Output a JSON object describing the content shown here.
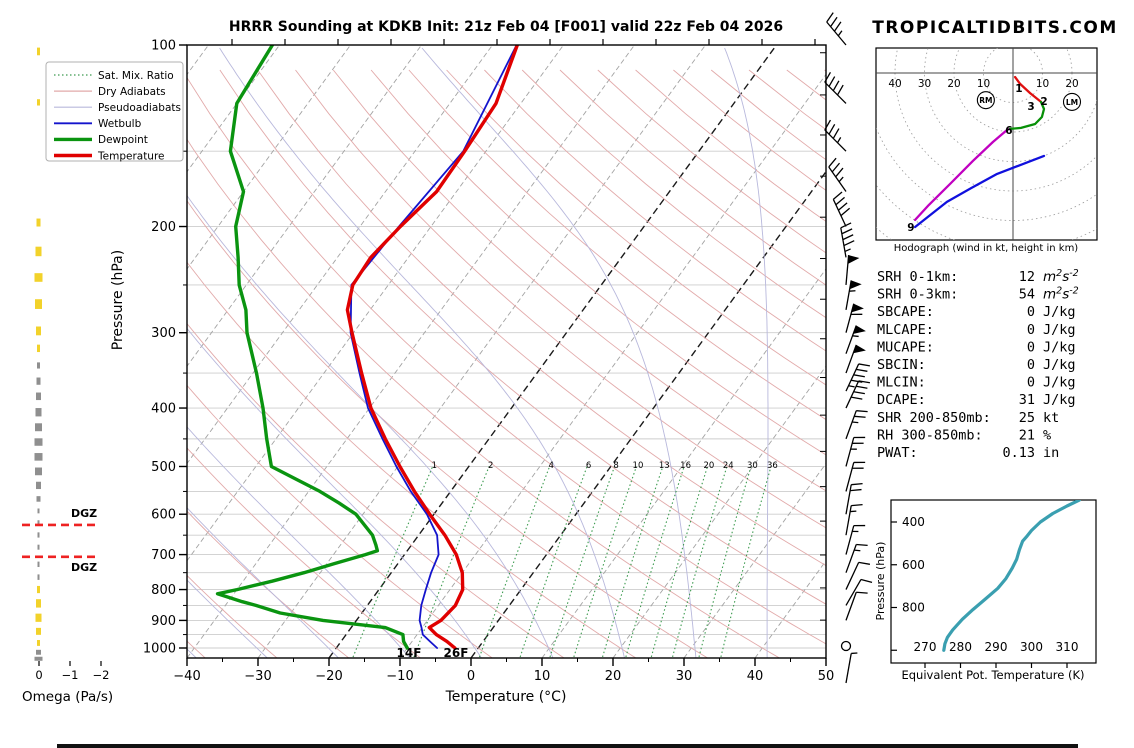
{
  "header": {
    "title": "HRRR Sounding at KDKB Init: 21z Feb 04 [F001] valid 22z Feb 04 2026",
    "watermark": "TROPICALTIDBITS.COM"
  },
  "skewt": {
    "xlabel": "Temperature (°C)",
    "ylabel": "Pressure (hPa)",
    "pressure_ticks": [
      100,
      200,
      300,
      400,
      500,
      600,
      700,
      800,
      900,
      1000
    ],
    "temp_tick_labels": [
      "−40",
      "−30",
      "−20",
      "−10",
      "0",
      "10",
      "20",
      "30",
      "40",
      "50"
    ],
    "temp_ticks": [
      -40,
      -30,
      -20,
      -10,
      0,
      10,
      20,
      30,
      40,
      50
    ],
    "surface_temp_label": "26F",
    "surface_dewpoint_label": "14F",
    "mixing_ratio_values": [
      1,
      2,
      4,
      6,
      8,
      10,
      13,
      16,
      20,
      24,
      30,
      36
    ],
    "legend": [
      {
        "label": "Sat. Mix. Ratio",
        "color": "#3d9b50",
        "width": 1.2,
        "dash": "1.5 2.5"
      },
      {
        "label": "Dry Adiabats",
        "color": "#e2aaaa",
        "width": 1.2,
        "dash": ""
      },
      {
        "label": "Pseudoadiabats",
        "color": "#b8b8dc",
        "width": 1.2,
        "dash": ""
      },
      {
        "label": "Wetbulb",
        "color": "#1414cc",
        "width": 1.8,
        "dash": ""
      },
      {
        "label": "Dewpoint",
        "color": "#0a9410",
        "width": 3.4,
        "dash": ""
      },
      {
        "label": "Temperature",
        "color": "#e00000",
        "width": 3.4,
        "dash": ""
      }
    ]
  },
  "omega_panel": {
    "xlabel": "Omega (Pa/s)",
    "tick_labels": [
      "0",
      "−1",
      "−2"
    ],
    "dgz_label": "DGZ",
    "dgz_pressures": [
      625,
      706
    ]
  },
  "hodograph": {
    "caption": "Hodograph (wind in kt, height in km)",
    "ring_labels_left": [
      "40",
      "30",
      "20",
      "10"
    ],
    "ring_labels_right": [
      "10",
      "20"
    ],
    "storm_markers": [
      {
        "label": "RM",
        "u": -9.2,
        "v": -9.2
      },
      {
        "label": "LM",
        "u": 20.0,
        "v": -9.8
      }
    ],
    "height_marks": [
      {
        "km": "1",
        "u": 2.0,
        "v": -6.4
      },
      {
        "km": "2",
        "u": 10.5,
        "v": -10.8
      },
      {
        "km": "3",
        "u": 6.1,
        "v": -12.5
      },
      {
        "km": "6",
        "u": -1.4,
        "v": -20.7
      },
      {
        "km": "9",
        "u": -34.6,
        "v": -53.6
      }
    ]
  },
  "stats": {
    "rows": [
      {
        "label": "SRH 0-1km:",
        "value": "12",
        "unit": "m²s⁻²",
        "color": "#000000"
      },
      {
        "label": "SRH 0-3km:",
        "value": "54",
        "unit": "m²s⁻²",
        "color": "#000000"
      },
      {
        "label": "SBCAPE:",
        "value": "0",
        "unit": "J/kg",
        "color": "#000000"
      },
      {
        "label": "MLCAPE:",
        "value": "0",
        "unit": "J/kg",
        "color": "#000000"
      },
      {
        "label": "MUCAPE:",
        "value": "0",
        "unit": "J/kg",
        "color": "#000000"
      },
      {
        "label": "SBCIN:",
        "value": "0",
        "unit": "J/kg",
        "color": "#000000"
      },
      {
        "label": "MLCIN:",
        "value": "0",
        "unit": "J/kg",
        "color": "#000000"
      },
      {
        "label": "DCAPE:",
        "value": "31",
        "unit": "J/kg",
        "color": "#2a2ad8"
      },
      {
        "label": "SHR 200-850mb:",
        "value": "25",
        "unit": "kt",
        "color": "#dd5b35"
      },
      {
        "label": "RH 300-850mb:",
        "value": "21",
        "unit": "%",
        "color": "#a0761b"
      },
      {
        "label": "PWAT:",
        "value": "0.13",
        "unit": "in",
        "color": "#000000"
      }
    ]
  },
  "theta_e_panel": {
    "xlabel": "Equivalent Pot. Temperature (K)",
    "ylabel": "Pressure (hPa)",
    "x_ticks": [
      270,
      280,
      290,
      300,
      310
    ],
    "y_ticks": [
      400,
      600,
      800
    ]
  },
  "chart_data": {
    "sounding": {
      "type": "line",
      "title": "HRRR Sounding at KDKB Init: 21z Feb 04 [F001] valid 22z Feb 04 2026",
      "xlabel": "Temperature (°C)",
      "ylabel": "Pressure (hPa)",
      "x_range": [
        -40,
        50
      ],
      "pressure_range": [
        100,
        1050
      ],
      "surface_temp": "26F",
      "surface_dewpoint": "14F",
      "series": [
        {
          "name": "Temperature",
          "color": "#e00000",
          "points": [
            [
              100,
              -56.5
            ],
            [
              125,
              -53.5
            ],
            [
              150,
              -53.0
            ],
            [
              175,
              -52.8
            ],
            [
              200,
              -54.3
            ],
            [
              225,
              -55.3
            ],
            [
              250,
              -55.0
            ],
            [
              275,
              -53.2
            ],
            [
              300,
              -50.2
            ],
            [
              350,
              -44.7
            ],
            [
              400,
              -39.8
            ],
            [
              450,
              -34.6
            ],
            [
              500,
              -29.7
            ],
            [
              550,
              -25.1
            ],
            [
              600,
              -20.6
            ],
            [
              650,
              -16.3
            ],
            [
              700,
              -12.7
            ],
            [
              750,
              -10.0
            ],
            [
              800,
              -8.2
            ],
            [
              850,
              -7.6
            ],
            [
              900,
              -8.1
            ],
            [
              925,
              -9.0
            ],
            [
              950,
              -7.3
            ],
            [
              975,
              -5.1
            ],
            [
              1000,
              -3.3
            ]
          ]
        },
        {
          "name": "Dewpoint",
          "color": "#0a9410",
          "points": [
            [
              100,
              -91
            ],
            [
              125,
              -90
            ],
            [
              150,
              -86
            ],
            [
              175,
              -80
            ],
            [
              200,
              -77.5
            ],
            [
              225,
              -74
            ],
            [
              250,
              -71
            ],
            [
              275,
              -67.5
            ],
            [
              300,
              -65
            ],
            [
              350,
              -59.5
            ],
            [
              400,
              -55
            ],
            [
              450,
              -51.3
            ],
            [
              500,
              -47.8
            ],
            [
              525,
              -43
            ],
            [
              550,
              -38.4
            ],
            [
              575,
              -34.5
            ],
            [
              600,
              -31
            ],
            [
              650,
              -26.5
            ],
            [
              675,
              -25
            ],
            [
              690,
              -24.2
            ],
            [
              700,
              -25.5
            ],
            [
              725,
              -29
            ],
            [
              750,
              -32.3
            ],
            [
              775,
              -35.9
            ],
            [
              800,
              -40
            ],
            [
              813,
              -42.3
            ],
            [
              838,
              -38
            ],
            [
              850,
              -35.7
            ],
            [
              875,
              -31.5
            ],
            [
              900,
              -24.7
            ],
            [
              925,
              -15.2
            ],
            [
              950,
              -12
            ],
            [
              975,
              -11.2
            ],
            [
              1000,
              -10
            ]
          ]
        },
        {
          "name": "Wetbulb",
          "color": "#1414cc",
          "points": [
            [
              100,
              -56.6
            ],
            [
              150,
              -53.2
            ],
            [
              200,
              -54.5
            ],
            [
              250,
              -55.2
            ],
            [
              300,
              -50.4
            ],
            [
              350,
              -45
            ],
            [
              400,
              -40.2
            ],
            [
              450,
              -35
            ],
            [
              500,
              -30.2
            ],
            [
              550,
              -25.6
            ],
            [
              600,
              -21
            ],
            [
              650,
              -17.4
            ],
            [
              700,
              -15.2
            ],
            [
              750,
              -14.4
            ],
            [
              800,
              -13.4
            ],
            [
              850,
              -12.4
            ],
            [
              900,
              -11.1
            ],
            [
              925,
              -10.1
            ],
            [
              950,
              -9.2
            ],
            [
              975,
              -7.5
            ],
            [
              1000,
              -5.8
            ]
          ]
        }
      ]
    },
    "wind_barbs": {
      "type": "barbs",
      "units": "kt",
      "levels_p_dir_spd": [
        [
          100,
          320,
          35
        ],
        [
          125,
          315,
          40
        ],
        [
          150,
          315,
          35
        ],
        [
          175,
          325,
          35
        ],
        [
          200,
          335,
          40
        ],
        [
          225,
          350,
          45
        ],
        [
          250,
          5,
          50
        ],
        [
          275,
          10,
          55
        ],
        [
          300,
          15,
          60
        ],
        [
          325,
          20,
          55
        ],
        [
          350,
          20,
          50
        ],
        [
          375,
          25,
          45
        ],
        [
          400,
          25,
          40
        ],
        [
          450,
          20,
          25
        ],
        [
          500,
          15,
          25
        ],
        [
          550,
          15,
          20
        ],
        [
          600,
          10,
          20
        ],
        [
          650,
          10,
          15
        ],
        [
          700,
          15,
          15
        ],
        [
          750,
          20,
          15
        ],
        [
          800,
          25,
          10
        ],
        [
          850,
          30,
          10
        ],
        [
          900,
          20,
          10
        ],
        [
          950,
          0,
          0
        ],
        [
          1000,
          10,
          5
        ]
      ]
    },
    "hodograph": {
      "type": "line",
      "units": "kt",
      "segments": [
        {
          "name": "0-2 km",
          "color": "#e01010",
          "points": [
            [
              0.7,
              -1.4
            ],
            [
              2.4,
              -3.7
            ],
            [
              5.8,
              -6.8
            ],
            [
              9.5,
              -9.8
            ]
          ]
        },
        {
          "name": "2-6 km",
          "color": "#089008",
          "points": [
            [
              9.5,
              -9.8
            ],
            [
              10.5,
              -12.2
            ],
            [
              9.8,
              -14.9
            ],
            [
              7.5,
              -17.3
            ],
            [
              2.7,
              -18.6
            ],
            [
              -1.7,
              -19.0
            ]
          ]
        },
        {
          "name": "6-9 km",
          "color": "#c000c0",
          "points": [
            [
              -1.7,
              -19.0
            ],
            [
              -6.8,
              -23.4
            ],
            [
              -13.6,
              -29.8
            ],
            [
              -21.0,
              -37.3
            ],
            [
              -28.5,
              -44.7
            ],
            [
              -33.2,
              -49.8
            ]
          ]
        },
        {
          "name": "upper",
          "color": "#1010dd",
          "points": [
            [
              10.5,
              -28.1
            ],
            [
              1.7,
              -31.5
            ],
            [
              -5.4,
              -34.2
            ],
            [
              -14.2,
              -39.0
            ],
            [
              -22.4,
              -43.7
            ],
            [
              -33.2,
              -52.2
            ]
          ]
        }
      ]
    },
    "omega_profile": {
      "type": "line",
      "xlabel": "Omega (Pa/s)",
      "x_ticks": [
        0,
        -1,
        -2
      ],
      "dgz_pressures": [
        625,
        706
      ],
      "segments_p1_p2_w_color": [
        [
          101,
          104,
          3,
          "yellow"
        ],
        [
          123,
          126,
          3,
          "yellow"
        ],
        [
          194,
          200,
          4,
          "yellow"
        ],
        [
          216,
          224,
          6,
          "yellow"
        ],
        [
          239,
          247,
          8,
          "yellow"
        ],
        [
          264,
          274,
          7,
          "yellow"
        ],
        [
          293,
          303,
          5,
          "yellow"
        ],
        [
          314,
          323,
          3,
          "yellow"
        ],
        [
          336,
          344,
          3,
          "gray"
        ],
        [
          356,
          366,
          4,
          "gray"
        ],
        [
          377,
          388,
          5,
          "gray"
        ],
        [
          400,
          413,
          6,
          "gray"
        ],
        [
          424,
          437,
          7,
          "gray"
        ],
        [
          449,
          462,
          8,
          "gray"
        ],
        [
          475,
          489,
          8,
          "gray"
        ],
        [
          502,
          517,
          7,
          "gray"
        ],
        [
          530,
          545,
          5,
          "gray"
        ],
        [
          560,
          572,
          4,
          "gray"
        ],
        [
          587,
          598,
          2,
          "gray"
        ],
        [
          614,
          626,
          2,
          "gray"
        ],
        [
          643,
          656,
          2,
          "gray"
        ],
        [
          674,
          687,
          2,
          "gray"
        ],
        [
          719,
          734,
          2,
          "gray"
        ],
        [
          755,
          771,
          2,
          "gray"
        ],
        [
          789,
          811,
          3,
          "yellow"
        ],
        [
          830,
          857,
          5,
          "yellow"
        ],
        [
          877,
          905,
          6,
          "yellow"
        ],
        [
          926,
          951,
          5,
          "yellow"
        ],
        [
          970,
          992,
          3,
          "yellow"
        ],
        [
          1007,
          1026,
          5,
          "gray"
        ],
        [
          1034,
          1050,
          8,
          "gray"
        ]
      ]
    },
    "theta_e_profile": {
      "type": "line",
      "xlabel": "Equivalent Pot. Temperature (K)",
      "ylabel": "Pressure (hPa)",
      "color": "#3a9fb0",
      "points": [
        [
          313.5,
          297
        ],
        [
          310,
          325
        ],
        [
          306,
          360
        ],
        [
          302.5,
          400
        ],
        [
          300,
          440
        ],
        [
          298.8,
          465
        ],
        [
          297.5,
          490
        ],
        [
          296.6,
          530
        ],
        [
          295.8,
          575
        ],
        [
          294.6,
          615
        ],
        [
          292.8,
          665
        ],
        [
          290.5,
          710
        ],
        [
          287,
          760
        ],
        [
          283.5,
          810
        ],
        [
          280.5,
          855
        ],
        [
          277.8,
          905
        ],
        [
          276.3,
          940
        ],
        [
          275.6,
          970
        ],
        [
          275.3,
          1000
        ]
      ]
    }
  }
}
